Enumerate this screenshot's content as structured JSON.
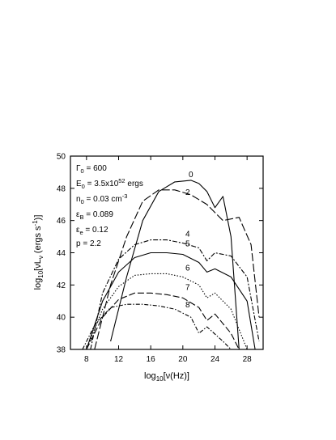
{
  "chart_data": {
    "type": "line",
    "xlabel": {
      "base": "log",
      "sub": "10",
      "rest": "[ν(Hz)]"
    },
    "ylabel": {
      "base": "log",
      "sub": "10",
      "mid": "[νL",
      "sub2": "ν",
      "rest": " (ergs s",
      "sup": "-1",
      "end": ")]"
    },
    "xlim": [
      6,
      30
    ],
    "ylim": [
      38,
      50
    ],
    "xticks": [
      8,
      12,
      16,
      20,
      24,
      28
    ],
    "yticks": [
      38,
      40,
      42,
      44,
      46,
      48,
      50
    ],
    "grid": false,
    "parameters": [
      {
        "pre": "Γ",
        "sub": "0",
        "post": " = 600"
      },
      {
        "pre": "E",
        "sub": "0",
        "post": " = 3.5x10",
        "sup": "52",
        "tail": " ergs"
      },
      {
        "pre": "n",
        "sub": "0",
        "post": " = 0.03 cm",
        "sup": "-3"
      },
      {
        "pre": "ε",
        "sub": "B",
        "post": " = 0.089"
      },
      {
        "pre": "ε",
        "sub": "e",
        "post": " = 0.12"
      },
      {
        "pre": "p = 2.2"
      }
    ],
    "series": [
      {
        "name": "0",
        "label_at": [
          21.0,
          48.7
        ],
        "dash": "",
        "x": [
          11,
          13,
          15,
          17,
          19,
          21,
          22,
          23,
          24,
          25,
          26,
          27
        ],
        "y": [
          38.5,
          42.5,
          46.0,
          47.8,
          48.4,
          48.5,
          48.3,
          47.8,
          46.8,
          47.5,
          45.0,
          38
        ]
      },
      {
        "name": "2",
        "label_at": [
          20.6,
          47.6
        ],
        "dash": "10,3",
        "x": [
          9,
          11,
          13,
          15,
          17,
          19,
          21,
          23,
          25,
          27,
          28.5,
          29.5
        ],
        "y": [
          38,
          42.0,
          45.0,
          47.2,
          47.9,
          47.9,
          47.6,
          47.0,
          46.0,
          46.2,
          44.5,
          40.0
        ]
      },
      {
        "name": "4",
        "label_at": [
          20.6,
          45.0
        ],
        "dash": "6,2,2,2",
        "x": [
          8.5,
          10,
          12,
          14,
          16,
          18,
          20,
          22,
          23,
          24,
          26,
          28,
          29.5
        ],
        "y": [
          38,
          41.5,
          43.6,
          44.5,
          44.8,
          44.8,
          44.6,
          44.3,
          43.5,
          44.0,
          43.8,
          42.5,
          38.5
        ]
      },
      {
        "name": "5",
        "label_at": [
          20.6,
          44.4
        ],
        "dash": "",
        "x": [
          8,
          10,
          12,
          14,
          16,
          18,
          20,
          22,
          23,
          24,
          26,
          28,
          29
        ],
        "y": [
          38,
          41.0,
          42.8,
          43.7,
          44.0,
          44.0,
          43.9,
          43.4,
          42.8,
          43.0,
          42.5,
          41.0,
          38
        ]
      },
      {
        "name": "6",
        "label_at": [
          20.6,
          42.9
        ],
        "dash": "1.5,2",
        "x": [
          8,
          10,
          12,
          14,
          16,
          18,
          20,
          22,
          23,
          24,
          26,
          28
        ],
        "y": [
          38,
          40.5,
          41.9,
          42.6,
          42.7,
          42.7,
          42.5,
          42.0,
          41.2,
          41.5,
          40.5,
          38
        ]
      },
      {
        "name": "7",
        "label_at": [
          20.6,
          41.7
        ],
        "dash": "8,3",
        "x": [
          8,
          10,
          12,
          14,
          16,
          18,
          20,
          22,
          23,
          24,
          26,
          27
        ],
        "y": [
          38,
          40.0,
          41.1,
          41.5,
          41.5,
          41.4,
          41.2,
          40.6,
          39.8,
          40.2,
          39.0,
          38
        ]
      },
      {
        "name": "8",
        "label_at": [
          20.6,
          40.6
        ],
        "dash": "5,2,1.5,2",
        "x": [
          7.5,
          9,
          11,
          13,
          15,
          17,
          19,
          21,
          22,
          23,
          25,
          26
        ],
        "y": [
          38,
          39.5,
          40.6,
          40.8,
          40.8,
          40.7,
          40.5,
          40.0,
          39.0,
          39.4,
          38.5,
          38
        ]
      }
    ]
  }
}
